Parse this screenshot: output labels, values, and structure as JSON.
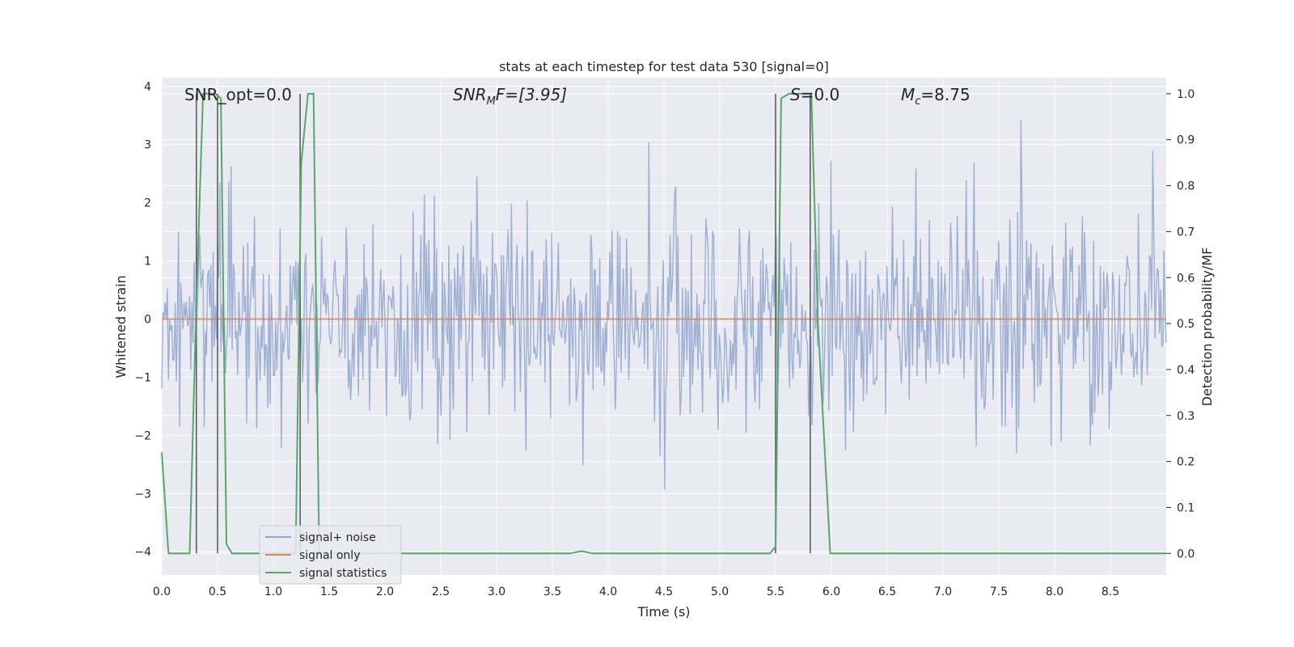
{
  "chart_data": {
    "type": "line",
    "title": "stats at each timestep for test data 530 [signal=0]",
    "xlabel": "Time (s)",
    "ylabel": "Whitened strain",
    "y2label": "Detection probability/MF",
    "xlim": [
      0.0,
      9.0
    ],
    "ylim": [
      -4.4,
      4.15
    ],
    "y2lim": [
      -0.047,
      1.035
    ],
    "x_ticks": [
      "0.0",
      "0.5",
      "1.0",
      "1.5",
      "2.0",
      "2.5",
      "3.0",
      "3.5",
      "4.0",
      "4.5",
      "5.0",
      "5.5",
      "6.0",
      "6.5",
      "7.0",
      "7.5",
      "8.0",
      "8.5"
    ],
    "y_ticks": [
      "4",
      "3",
      "2",
      "1",
      "0",
      "−1",
      "−2",
      "−3",
      "−4"
    ],
    "y2_ticks": [
      "1.0",
      "0.9",
      "0.8",
      "0.7",
      "0.6",
      "0.5",
      "0.4",
      "0.3",
      "0.2",
      "0.1",
      "0.0"
    ],
    "annotations": {
      "snr_opt": "SNR_opt=0.0",
      "snr_mf_label": "SNR",
      "snr_mf_sub": "M",
      "snr_mf_tail": "F=[3.95]",
      "s_label": "S",
      "s_value": "=0.0",
      "mc_label": "M",
      "mc_sub": "c",
      "mc_value": "=8.75"
    },
    "legend": [
      "signal+ noise",
      "signal only",
      "signal statistics"
    ],
    "colors": {
      "noise": "#8fa5cc",
      "signal": "#dd8452",
      "stats": "#55a868",
      "vlines": "#555555",
      "axes_bg": "#eaeaf2",
      "grid": "#ffffff"
    },
    "series": [
      {
        "name": "signal statistics",
        "axis": "right",
        "x": [
          0.0,
          0.06,
          0.25,
          0.31,
          0.37,
          0.48,
          0.53,
          0.58,
          0.63,
          1.2,
          1.25,
          1.31,
          1.36,
          1.41,
          1.46,
          3.66,
          3.76,
          3.86,
          5.45,
          5.5,
          5.55,
          5.62,
          5.82,
          5.88,
          5.99,
          9.0
        ],
        "y": [
          0.22,
          0.0,
          0.0,
          0.55,
          1.0,
          1.0,
          0.99,
          0.02,
          0.0,
          0.0,
          0.85,
          1.0,
          1.0,
          0.0,
          0.0,
          0.0,
          0.005,
          0.0,
          0.0,
          0.015,
          0.99,
          1.0,
          1.0,
          0.5,
          0.0,
          0.0
        ]
      },
      {
        "name": "signal only",
        "axis": "left",
        "x": [
          0.0,
          9.0
        ],
        "y": [
          0.0,
          0.0
        ]
      },
      {
        "name": "signal+ noise",
        "axis": "left",
        "n_samples": 900,
        "description": "gaussian noise, std ~0.9"
      }
    ],
    "vertical_lines": [
      0.31,
      0.5,
      1.24,
      5.5,
      5.81
    ]
  }
}
